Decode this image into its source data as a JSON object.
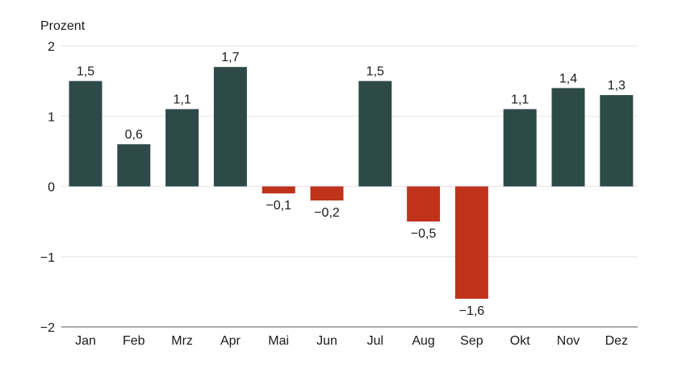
{
  "chart_data": {
    "type": "bar",
    "ylabel": "Prozent",
    "categories": [
      "Jan",
      "Feb",
      "Mrz",
      "Apr",
      "Mai",
      "Jun",
      "Jul",
      "Aug",
      "Sep",
      "Okt",
      "Nov",
      "Dez"
    ],
    "values": [
      1.5,
      0.6,
      1.1,
      1.7,
      -0.1,
      -0.2,
      1.5,
      -0.5,
      -1.6,
      1.1,
      1.4,
      1.3
    ],
    "data_labels": [
      "1,5",
      "0,6",
      "1,1",
      "1,7",
      "−0,1",
      "−0,2",
      "1,5",
      "−0,5",
      "−1,6",
      "1,1",
      "1,4",
      "1,3"
    ],
    "yticks": [
      2,
      1,
      0,
      -1,
      -2
    ],
    "ytick_labels": [
      "2",
      "1",
      "0",
      "−1",
      "−2"
    ],
    "ylim": [
      -2,
      2
    ],
    "grid": true,
    "colors": {
      "positive": "#2d4a48",
      "negative": "#c0321a",
      "grid": "#e6e6e6",
      "axis": "#555555"
    }
  }
}
